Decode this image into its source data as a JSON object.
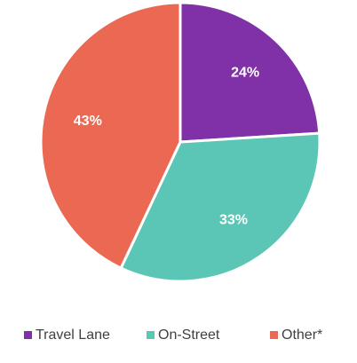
{
  "chart_data": {
    "type": "pie",
    "categories": [
      "Travel Lane",
      "On-Street",
      "Other*"
    ],
    "values": [
      24,
      33,
      43
    ],
    "value_labels": [
      "24%",
      "33%",
      "43%"
    ],
    "colors": [
      "#8031a7",
      "#5bc5b6",
      "#eb6953"
    ],
    "legend": "bottom"
  }
}
